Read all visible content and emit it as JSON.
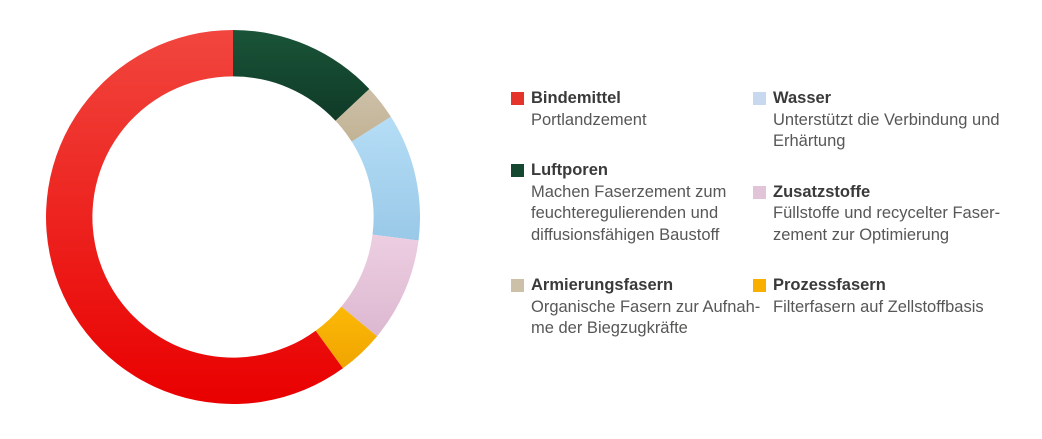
{
  "figure": {
    "background": "#ffffff",
    "name": "Faserzement Zusammensetzung"
  },
  "chart_data": {
    "type": "pie",
    "donut": true,
    "inner_radius_ratio": 0.752,
    "start_angle_deg": -90,
    "direction": "clockwise",
    "legend_position": "right",
    "title": "",
    "segments": [
      {
        "label": "Luftporen",
        "value": 13,
        "color": "#1A5438",
        "color2": "#0F3A27"
      },
      {
        "label": "Armierungsfasern",
        "value": 3,
        "color": "#CDC0A8",
        "color2": "#C2B395"
      },
      {
        "label": "Wasser",
        "value": 11,
        "color": "#B5DDF6",
        "color2": "#99C9E8"
      },
      {
        "label": "Zusatzstoffe",
        "value": 9,
        "color": "#EDCEE1",
        "color2": "#DCB8D0"
      },
      {
        "label": "Prozessfasern",
        "value": 4,
        "color": "#FCB907",
        "color2": "#F0A400"
      },
      {
        "label": "Bindemittel",
        "value": 60,
        "color": "#F1463E",
        "color2": "#E90000"
      }
    ]
  },
  "legend": {
    "columns": [
      {
        "items": [
          {
            "id": "bindemittel",
            "swatch_color": "#E5352B",
            "title": "Bindemittel",
            "desc_lines": [
              "Portlandzement"
            ]
          },
          {
            "id": "luftporen",
            "swatch_color": "#164831",
            "title": "Luftporen",
            "desc_lines": [
              "Machen Faserzement zum",
              "feuchteregulierenden und",
              "diffusionsfähigen Baustoff"
            ]
          },
          {
            "id": "armierungsfasern",
            "swatch_color": "#CCC0A8",
            "title": "Armierungsfasern",
            "desc_lines": [
              "Organische Fasern zur Aufnah-",
              "me der Biegzugkräfte"
            ]
          }
        ]
      },
      {
        "items": [
          {
            "id": "wasser",
            "swatch_color": "#C8D9EF",
            "title": "Wasser",
            "desc_lines": [
              "Unterstützt die Verbindung und",
              "Erhärtung"
            ]
          },
          {
            "id": "zusatzstoffe",
            "swatch_color": "#E2C4D9",
            "title": "Zusatzstoffe",
            "desc_lines": [
              "Füllstoffe und recycelter Faser-",
              "zement zur Optimierung"
            ]
          },
          {
            "id": "prozessfasern",
            "swatch_color": "#F8AF00",
            "title": "Prozessfasern",
            "desc_lines": [
              "Filterfasern auf Zellstoffbasis"
            ]
          }
        ]
      }
    ]
  }
}
